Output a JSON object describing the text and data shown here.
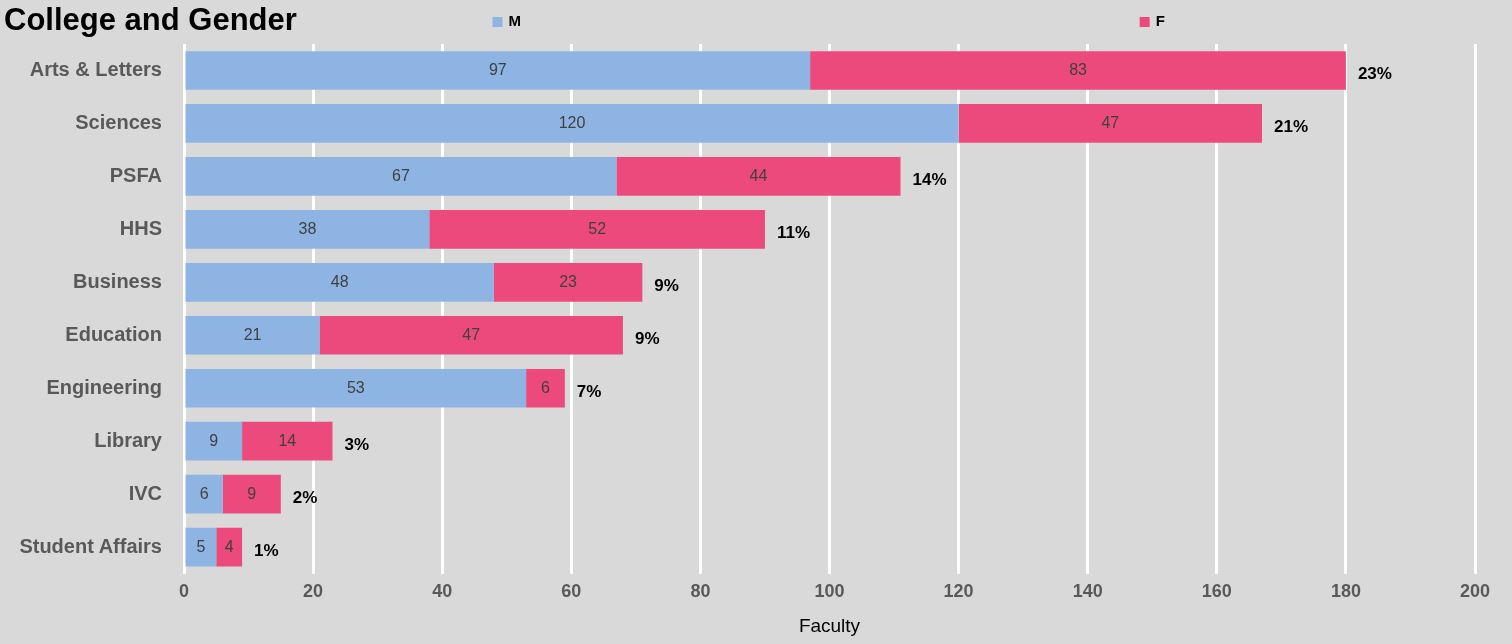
{
  "chart_data": {
    "type": "bar",
    "orientation": "horizontal",
    "stacked": true,
    "title": "College and Gender",
    "xlabel": "Faculty",
    "categories": [
      "Arts & Letters",
      "Sciences",
      "PSFA",
      "HHS",
      "Business",
      "Education",
      "Engineering",
      "Library",
      "IVC",
      "Student Affairs"
    ],
    "series": [
      {
        "name": "M",
        "color": "#8eb4e3",
        "values": [
          97,
          120,
          67,
          38,
          48,
          21,
          53,
          9,
          6,
          5
        ]
      },
      {
        "name": "F",
        "color": "#ec4a7c",
        "values": [
          83,
          47,
          44,
          52,
          23,
          47,
          6,
          14,
          9,
          4
        ]
      }
    ],
    "xlim": [
      0,
      200
    ],
    "xticks": [
      0,
      20,
      40,
      60,
      80,
      100,
      120,
      140,
      160,
      180,
      200
    ],
    "grid": "x",
    "legend": "top",
    "data_labels": true,
    "annotations": [
      {
        "text": "23%",
        "x": 180,
        "y": "Arts & Letters"
      },
      {
        "text": "21%",
        "x": 167,
        "y": "Sciences"
      },
      {
        "text": "14%",
        "x": 111,
        "y": "PSFA"
      },
      {
        "text": "11%",
        "x": 90,
        "y": "HHS"
      },
      {
        "text": "9%",
        "x": 71,
        "y": "Business"
      },
      {
        "text": "9%",
        "x": 68,
        "y": "Education"
      },
      {
        "text": "7%",
        "x": 59,
        "y": "Engineering"
      },
      {
        "text": "3%",
        "x": 23,
        "y": "Library"
      },
      {
        "text": "2%",
        "x": 15,
        "y": "IVC"
      },
      {
        "text": "1%",
        "x": 9,
        "y": "Student Affairs"
      }
    ]
  }
}
